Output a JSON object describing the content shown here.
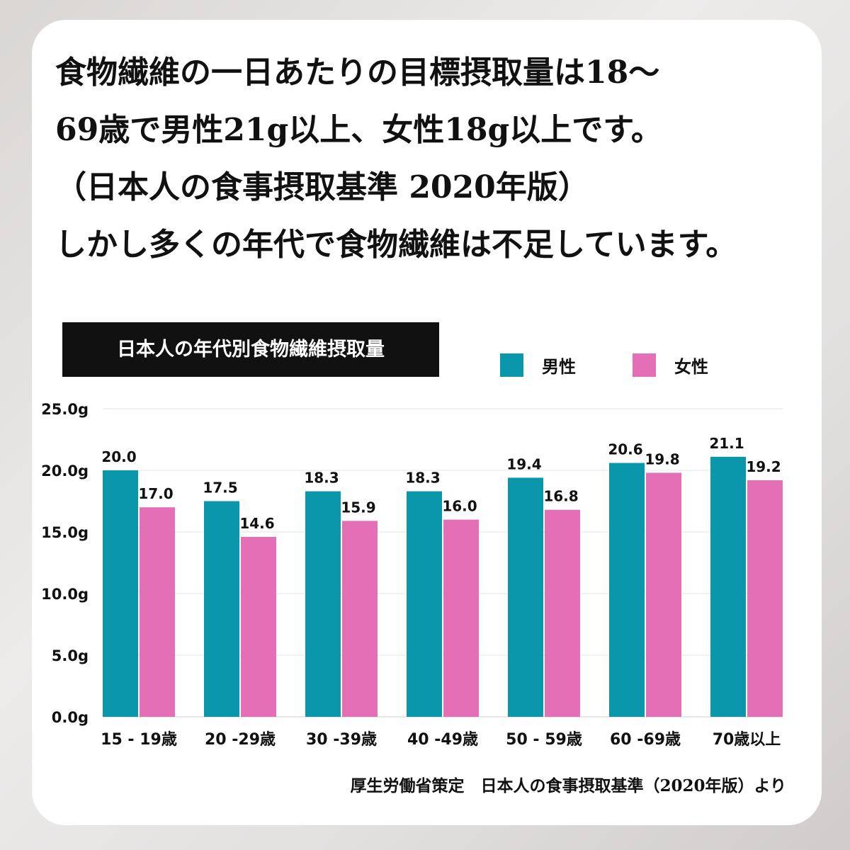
{
  "headline": {
    "lines": [
      "食物繊維の一日あたりの目標摂取量は18〜",
      "69歳で男性21g以上、女性18g以上です。",
      "（日本人の食事摂取基準 2020年版）",
      "しかし多くの年代で食物繊維は不足しています。"
    ]
  },
  "source": "厚生労働省策定　日本人の食事摂取基準（2020年版）より",
  "colors": {
    "male": "#0b97ab",
    "female": "#e56fb6"
  },
  "chart_data": {
    "type": "bar",
    "title": "日本人の年代別食物繊維摂取量",
    "categories": [
      "15 - 19歳",
      "20 -29歳",
      "30 -39歳",
      "40 -49歳",
      "50 - 59歳",
      "60 -69歳",
      "70歳以上"
    ],
    "series": [
      {
        "name": "男性",
        "values": [
          20.0,
          17.5,
          18.3,
          18.3,
          19.4,
          20.6,
          21.1
        ]
      },
      {
        "name": "女性",
        "values": [
          17.0,
          14.6,
          15.9,
          16.0,
          16.8,
          19.8,
          19.2
        ]
      }
    ],
    "yticks": [
      "0.0g",
      "5.0g",
      "10.0g",
      "15.0g",
      "20.0g",
      "25.0g"
    ],
    "ylim": [
      0,
      25
    ],
    "grid": true,
    "legend": "top-right",
    "xlabel": "",
    "ylabel": ""
  }
}
